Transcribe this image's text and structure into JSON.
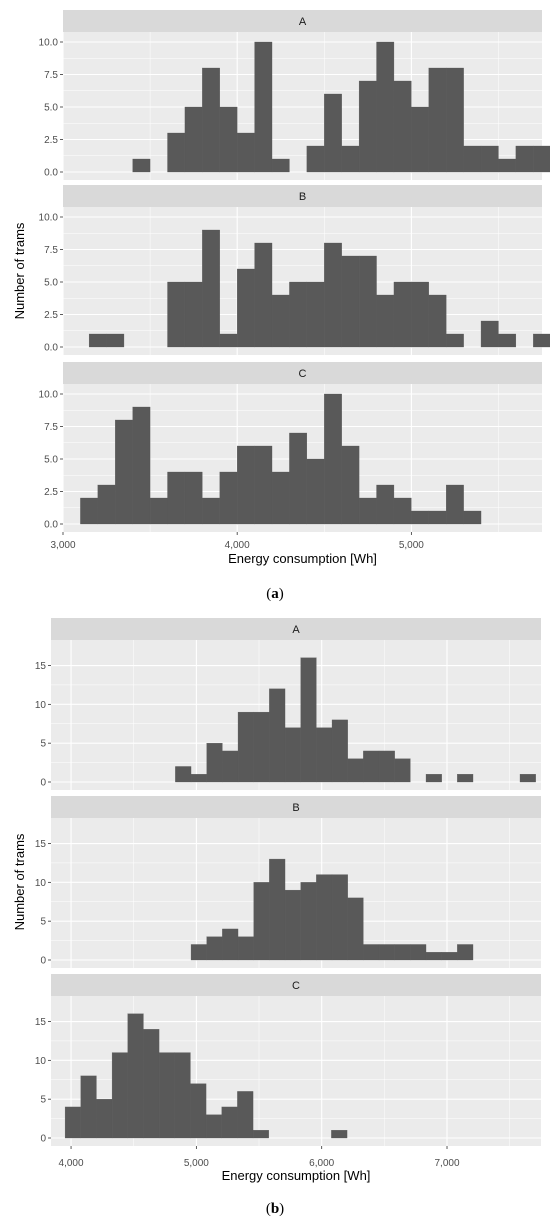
{
  "chart_data": [
    {
      "type": "bar",
      "caption": "(a)",
      "caption_bold": "a",
      "xlabel": "Energy consumption [Wh]",
      "ylabel": "Number of trams",
      "xlim": [
        3000,
        5750
      ],
      "ylim": [
        0,
        10
      ],
      "bin_width": 100,
      "x_ticks": [
        3000,
        4000,
        5000
      ],
      "x_tick_labels": [
        "3,000",
        "4,000",
        "5,000"
      ],
      "y_ticks": [
        0,
        2.5,
        5,
        7.5,
        10
      ],
      "y_tick_labels": [
        "0.0",
        "2.5",
        "5.0",
        "7.5",
        "10.0"
      ],
      "grid": true,
      "bar_color": "#595959",
      "facets": [
        {
          "label": "A",
          "bins": [
            [
              3450,
              1
            ],
            [
              3650,
              3
            ],
            [
              3750,
              5
            ],
            [
              3850,
              8
            ],
            [
              3950,
              5
            ],
            [
              4050,
              3
            ],
            [
              4150,
              10
            ],
            [
              4250,
              1
            ],
            [
              4450,
              2
            ],
            [
              4550,
              6
            ],
            [
              4650,
              2
            ],
            [
              4750,
              7
            ],
            [
              4850,
              10
            ],
            [
              4950,
              7
            ],
            [
              5050,
              5
            ],
            [
              5150,
              8
            ],
            [
              5250,
              8
            ],
            [
              5350,
              2
            ],
            [
              5450,
              2
            ],
            [
              5550,
              1
            ],
            [
              5650,
              2
            ],
            [
              5750,
              2
            ]
          ]
        },
        {
          "label": "B",
          "bins": [
            [
              3200,
              1
            ],
            [
              3300,
              1
            ],
            [
              3650,
              5
            ],
            [
              3750,
              5
            ],
            [
              3850,
              9
            ],
            [
              3950,
              1
            ],
            [
              4050,
              6
            ],
            [
              4150,
              8
            ],
            [
              4250,
              4
            ],
            [
              4350,
              5
            ],
            [
              4450,
              5
            ],
            [
              4550,
              8
            ],
            [
              4650,
              7
            ],
            [
              4750,
              7
            ],
            [
              4850,
              4
            ],
            [
              4950,
              5
            ],
            [
              5050,
              5
            ],
            [
              5150,
              4
            ],
            [
              5250,
              1
            ],
            [
              5450,
              2
            ],
            [
              5550,
              1
            ],
            [
              5750,
              1
            ]
          ]
        },
        {
          "label": "C",
          "bins": [
            [
              3150,
              2
            ],
            [
              3250,
              3
            ],
            [
              3350,
              8
            ],
            [
              3450,
              9
            ],
            [
              3550,
              2
            ],
            [
              3650,
              4
            ],
            [
              3750,
              4
            ],
            [
              3850,
              2
            ],
            [
              3950,
              4
            ],
            [
              4050,
              6
            ],
            [
              4150,
              6
            ],
            [
              4250,
              4
            ],
            [
              4350,
              7
            ],
            [
              4450,
              5
            ],
            [
              4550,
              10
            ],
            [
              4650,
              6
            ],
            [
              4750,
              2
            ],
            [
              4850,
              3
            ],
            [
              4950,
              2
            ],
            [
              5050,
              1
            ],
            [
              5150,
              1
            ],
            [
              5250,
              3
            ],
            [
              5350,
              1
            ]
          ]
        }
      ]
    },
    {
      "type": "bar",
      "caption": "(b)",
      "caption_bold": "b",
      "xlabel": "Energy consumption [Wh]",
      "ylabel": "Number of trams",
      "xlim": [
        3840,
        7750
      ],
      "ylim": [
        0,
        17
      ],
      "bin_width": 125,
      "x_ticks": [
        4000,
        5000,
        6000,
        7000
      ],
      "x_tick_labels": [
        "4,000",
        "5,000",
        "6,000",
        "7,000"
      ],
      "y_ticks": [
        0,
        5,
        10,
        15
      ],
      "y_tick_labels": [
        "0",
        "5",
        "10",
        "15"
      ],
      "grid": true,
      "bar_color": "#595959",
      "facets": [
        {
          "label": "A",
          "bins": [
            [
              4895,
              2
            ],
            [
              5020,
              1
            ],
            [
              5145,
              5
            ],
            [
              5270,
              4
            ],
            [
              5395,
              9
            ],
            [
              5520,
              9
            ],
            [
              5645,
              12
            ],
            [
              5770,
              7
            ],
            [
              5895,
              16
            ],
            [
              6020,
              7
            ],
            [
              6145,
              8
            ],
            [
              6270,
              3
            ],
            [
              6395,
              4
            ],
            [
              6520,
              4
            ],
            [
              6645,
              3
            ],
            [
              6895,
              1
            ],
            [
              7145,
              1
            ],
            [
              7645,
              1
            ]
          ]
        },
        {
          "label": "B",
          "bins": [
            [
              5020,
              2
            ],
            [
              5145,
              3
            ],
            [
              5270,
              4
            ],
            [
              5395,
              3
            ],
            [
              5520,
              10
            ],
            [
              5645,
              13
            ],
            [
              5770,
              9
            ],
            [
              5895,
              10
            ],
            [
              6020,
              11
            ],
            [
              6145,
              11
            ],
            [
              6270,
              8
            ],
            [
              6395,
              2
            ],
            [
              6520,
              2
            ],
            [
              6645,
              2
            ],
            [
              6770,
              2
            ],
            [
              6895,
              1
            ],
            [
              7020,
              1
            ],
            [
              7145,
              2
            ]
          ]
        },
        {
          "label": "C",
          "bins": [
            [
              4015,
              4
            ],
            [
              4140,
              8
            ],
            [
              4265,
              5
            ],
            [
              4390,
              11
            ],
            [
              4515,
              16
            ],
            [
              4640,
              14
            ],
            [
              4765,
              11
            ],
            [
              4890,
              11
            ],
            [
              5015,
              7
            ],
            [
              5140,
              3
            ],
            [
              5265,
              4
            ],
            [
              5390,
              6
            ],
            [
              5515,
              1
            ],
            [
              6140,
              1
            ]
          ]
        }
      ]
    }
  ]
}
